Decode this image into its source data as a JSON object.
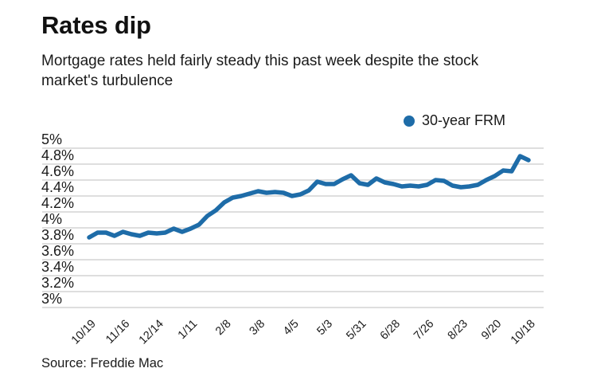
{
  "header": {
    "title": "Rates dip",
    "subtitle": "Mortgage rates held fairly steady this past week despite the stock market's turbulence"
  },
  "legend": {
    "label": "30-year FRM",
    "marker_color": "#1e6ca8"
  },
  "source": "Source: Freddie Mac",
  "colors": {
    "line": "#1e6ca8",
    "grid": "#c9c9c9",
    "text": "#1a1a1a",
    "background": "#ffffff"
  },
  "chart_data": {
    "type": "line",
    "title": "Rates dip",
    "subtitle": "Mortgage rates held fairly steady this past week despite the stock market's turbulence",
    "ylabel": "",
    "xlabel": "",
    "ylim": [
      3,
      5
    ],
    "grid": "horizontal",
    "legend_position": "top-right",
    "y_ticks": [
      5,
      4.8,
      4.6,
      4.4,
      4.2,
      4,
      3.8,
      3.6,
      3.4,
      3.2,
      3
    ],
    "y_tick_labels": [
      "5%",
      "4.8%",
      "4.6%",
      "4.4%",
      "4.2%",
      "4%",
      "3.8%",
      "3.6%",
      "3.4%",
      "3.2%",
      "3%"
    ],
    "x_tick_labels": [
      "10/19",
      "11/16",
      "12/14",
      "1/11",
      "2/8",
      "3/8",
      "4/5",
      "5/3",
      "5/31",
      "6/28",
      "7/26",
      "8/23",
      "9/20",
      "10/18"
    ],
    "x_tick_every": 4,
    "series": [
      {
        "name": "30-year FRM",
        "color": "#1e6ca8",
        "values": [
          3.88,
          3.94,
          3.94,
          3.9,
          3.95,
          3.92,
          3.9,
          3.94,
          3.93,
          3.94,
          3.99,
          3.95,
          3.99,
          4.04,
          4.15,
          4.22,
          4.32,
          4.38,
          4.4,
          4.43,
          4.46,
          4.44,
          4.45,
          4.44,
          4.4,
          4.42,
          4.47,
          4.58,
          4.55,
          4.55,
          4.61,
          4.66,
          4.56,
          4.54,
          4.62,
          4.57,
          4.55,
          4.52,
          4.53,
          4.52,
          4.54,
          4.6,
          4.59,
          4.53,
          4.51,
          4.52,
          4.54,
          4.6,
          4.65,
          4.72,
          4.71,
          4.9,
          4.85
        ]
      }
    ]
  }
}
